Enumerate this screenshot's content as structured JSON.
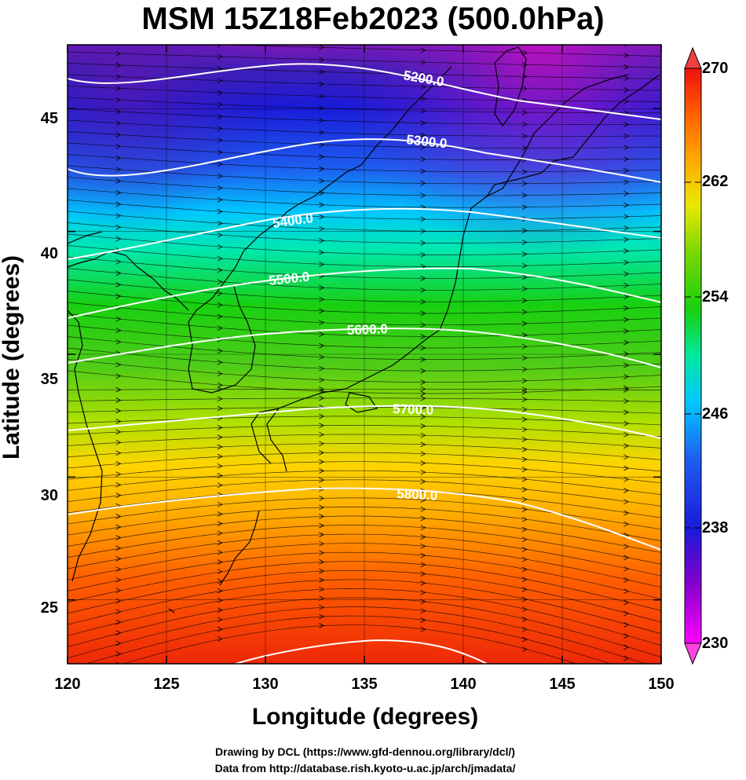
{
  "title": "MSM 15Z18Feb2023 (500.0hPa)",
  "axes": {
    "x_title": "Longitude (degrees)",
    "y_title": "Latitude  (degrees)",
    "x_ticks": [
      "120",
      "125",
      "130",
      "135",
      "140",
      "145",
      "150"
    ],
    "y_ticks": [
      "45",
      "40",
      "35",
      "30",
      "25"
    ],
    "x_range": [
      120,
      150
    ],
    "y_range": [
      22.4,
      47.6
    ]
  },
  "colorbar": {
    "ticks": [
      "270",
      "262",
      "254",
      "246",
      "238",
      "230"
    ],
    "range": [
      230,
      270
    ],
    "colors": [
      "#ff00ff",
      "#8800cc",
      "#1a1ad8",
      "#1e5ef0",
      "#00c8ff",
      "#00e8a0",
      "#18d010",
      "#7ad800",
      "#e8e800",
      "#ffaa00",
      "#ff6000",
      "#ee1010"
    ],
    "end_cap_colors": {
      "top": "#ee4040",
      "bottom": "#ff44dd"
    }
  },
  "contours": [
    {
      "label": "5200.0",
      "value": 5200
    },
    {
      "label": "5300.0",
      "value": 5300
    },
    {
      "label": "5400.0",
      "value": 5400
    },
    {
      "label": "5500.0",
      "value": 5500
    },
    {
      "label": "5600.0",
      "value": 5600
    },
    {
      "label": "5700.0",
      "value": 5700
    },
    {
      "label": "5800.0",
      "value": 5800
    },
    {
      "label": "",
      "value": 5900
    }
  ],
  "map_colors": {
    "contour": "#ffffff",
    "streamline": "#000000",
    "coast": "#000000"
  },
  "credits": {
    "line1": "Drawing by DCL (https://www.gfd-dennou.org/library/dcl/)",
    "line2": "Data from http://database.rish.kyoto-u.ac.jp/arch/jmadata/"
  }
}
